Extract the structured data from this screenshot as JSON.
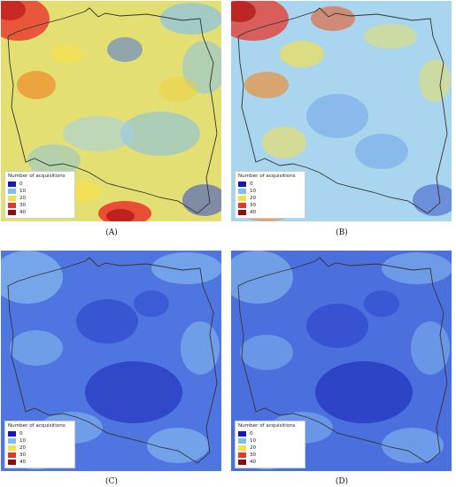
{
  "legend": {
    "title": "Number of acquisitions",
    "items": [
      {
        "label": "0",
        "color": "#1515c8"
      },
      {
        "label": "10",
        "color": "#7dc0f0"
      },
      {
        "label": "20",
        "color": "#f7e13c"
      },
      {
        "label": "30",
        "color": "#e8352a"
      },
      {
        "label": "40",
        "color": "#8e0c10"
      }
    ]
  },
  "panels": [
    {
      "id": "A",
      "caption": "(A)",
      "dominant_levels": "yellow-orange with blue patches"
    },
    {
      "id": "B",
      "caption": "(B)",
      "dominant_levels": "light blue with yellow/red in north and southwest"
    },
    {
      "id": "C",
      "caption": "(C)",
      "dominant_levels": "blue to light blue"
    },
    {
      "id": "D",
      "caption": "(D)",
      "dominant_levels": "blue to light blue"
    }
  ],
  "colors": {
    "border_line": "#333333",
    "low": "#1515c8",
    "mid_low": "#7dc0f0",
    "mid": "#f7e13c",
    "high": "#e8352a",
    "max": "#8e0c10"
  }
}
